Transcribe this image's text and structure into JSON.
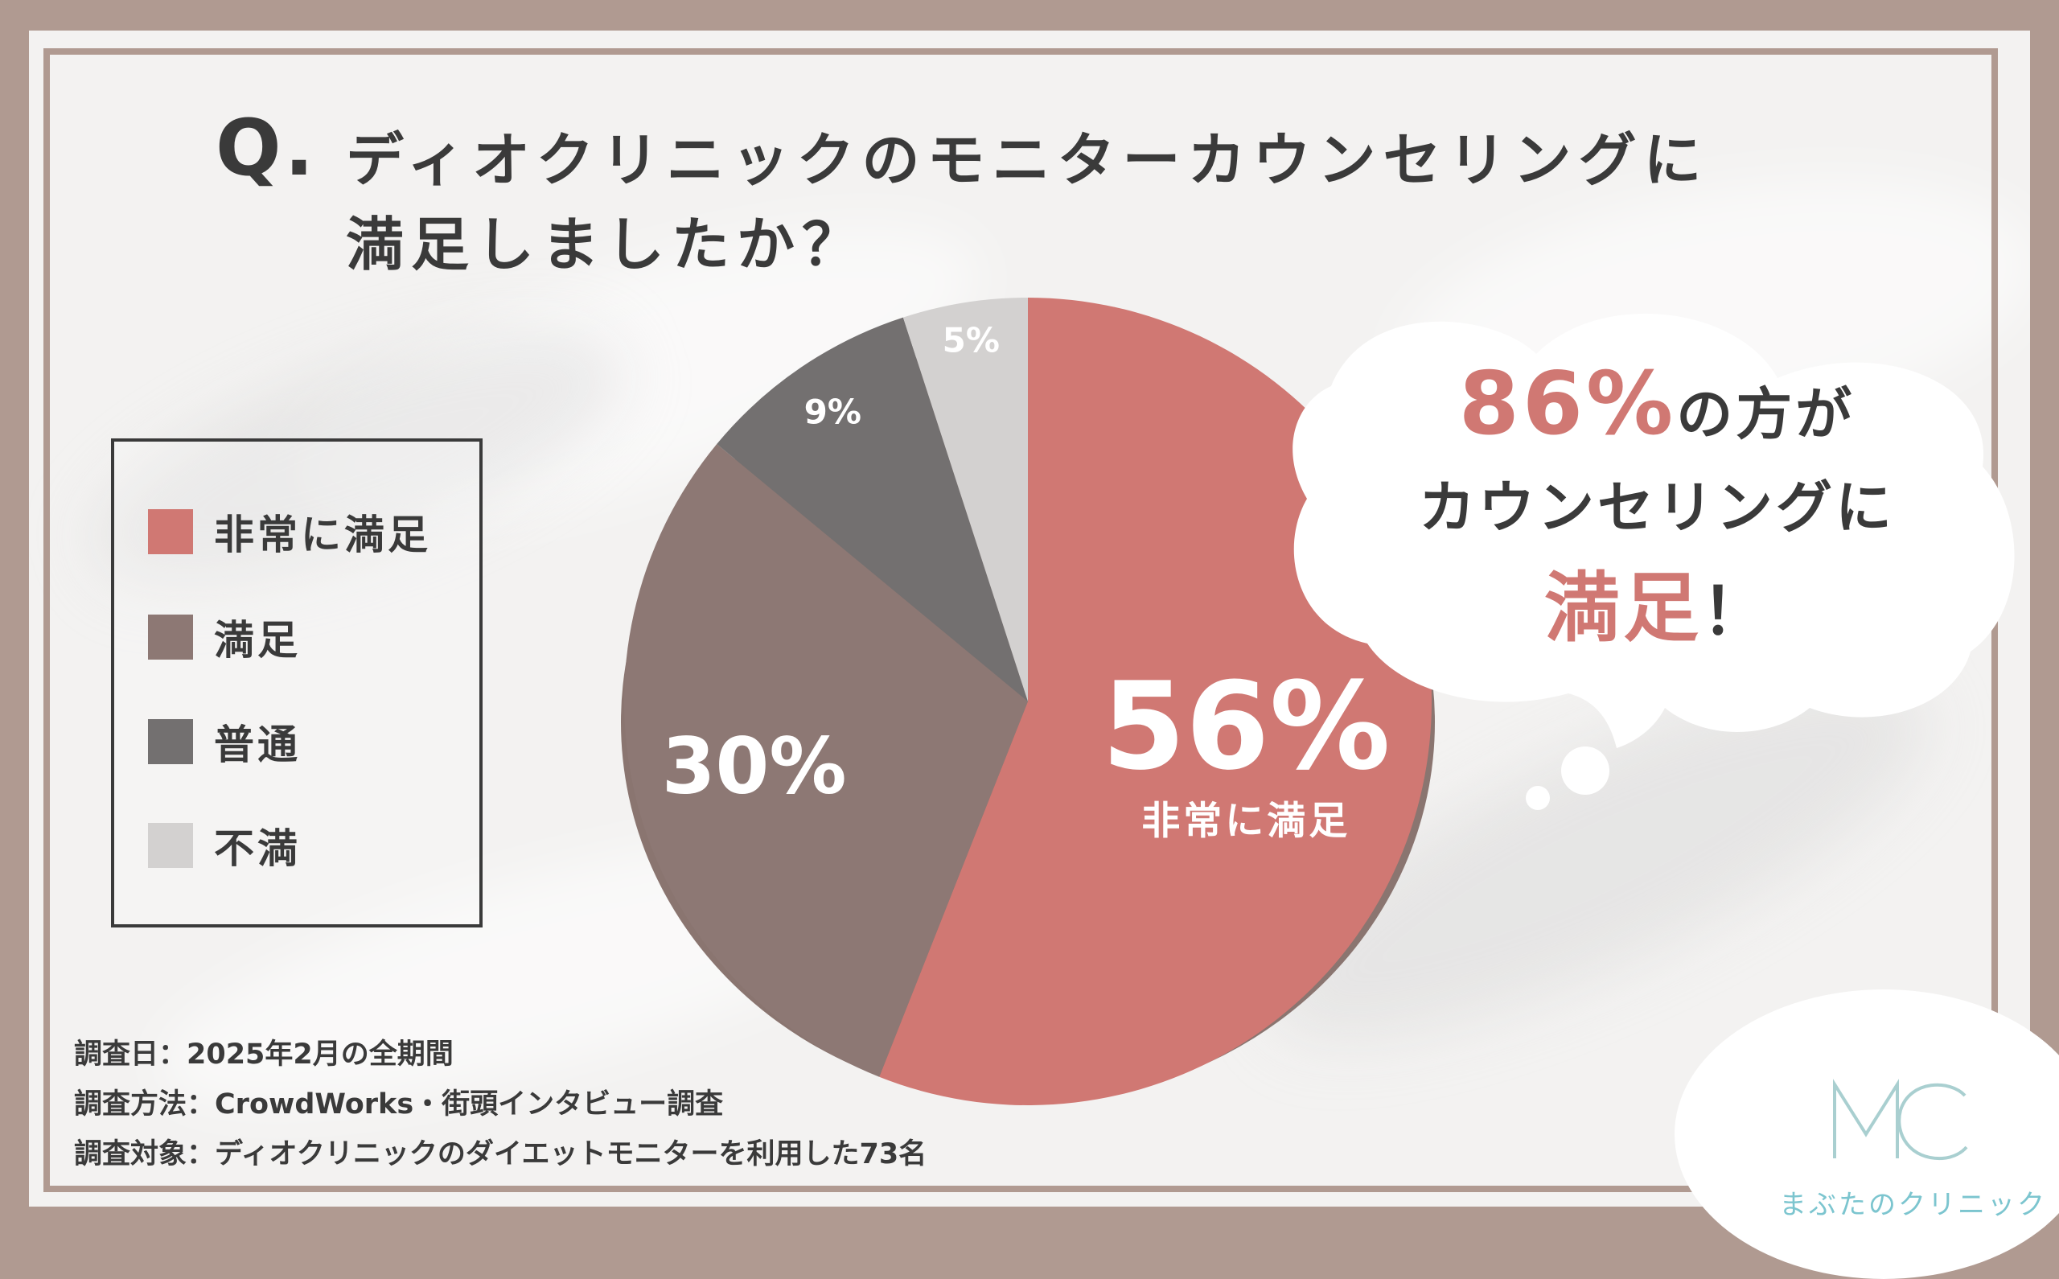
{
  "question": {
    "mark": "Q.",
    "line1": "ディオクリニックのモニターカウンセリングに",
    "line2": "満足しましたか？"
  },
  "colors": {
    "very_satisfied": "#d07873",
    "satisfied": "#8d7874",
    "neutral": "#737070",
    "dissatisfied": "#d3d1d0",
    "frame": "#b09a91",
    "text": "#3a3a3a",
    "accent": "#d07873",
    "logo": "#7cc5cf"
  },
  "legend": [
    {
      "label": "非常に満足",
      "color": "#d07873"
    },
    {
      "label": "満足",
      "color": "#8d7874"
    },
    {
      "label": "普通",
      "color": "#737070"
    },
    {
      "label": "不満",
      "color": "#d3d1d0"
    }
  ],
  "chart_data": {
    "type": "pie",
    "slices": [
      {
        "label": "非常に満足",
        "value": 56,
        "display": "56%",
        "sublabel": "非常に満足"
      },
      {
        "label": "満足",
        "value": 30,
        "display": "30%"
      },
      {
        "label": "普通",
        "value": 9,
        "display": "9%"
      },
      {
        "label": "不満",
        "value": 5,
        "display": "5%"
      }
    ]
  },
  "callout": {
    "highlight_value": "86%",
    "line1_rest": "の方が",
    "line2": "カウンセリングに",
    "line3_highlight": "満足",
    "line3_rest": "！"
  },
  "footer": {
    "date_line": "調査日：2025年2月の全期間",
    "method_line": "調査方法：CrowdWorks・街頭インタビュー調査",
    "target_line": "調査対象：ディオクリニックのダイエットモニターを利用した73名"
  },
  "logo": {
    "mark": "MC",
    "text": "まぶたのクリニック"
  }
}
